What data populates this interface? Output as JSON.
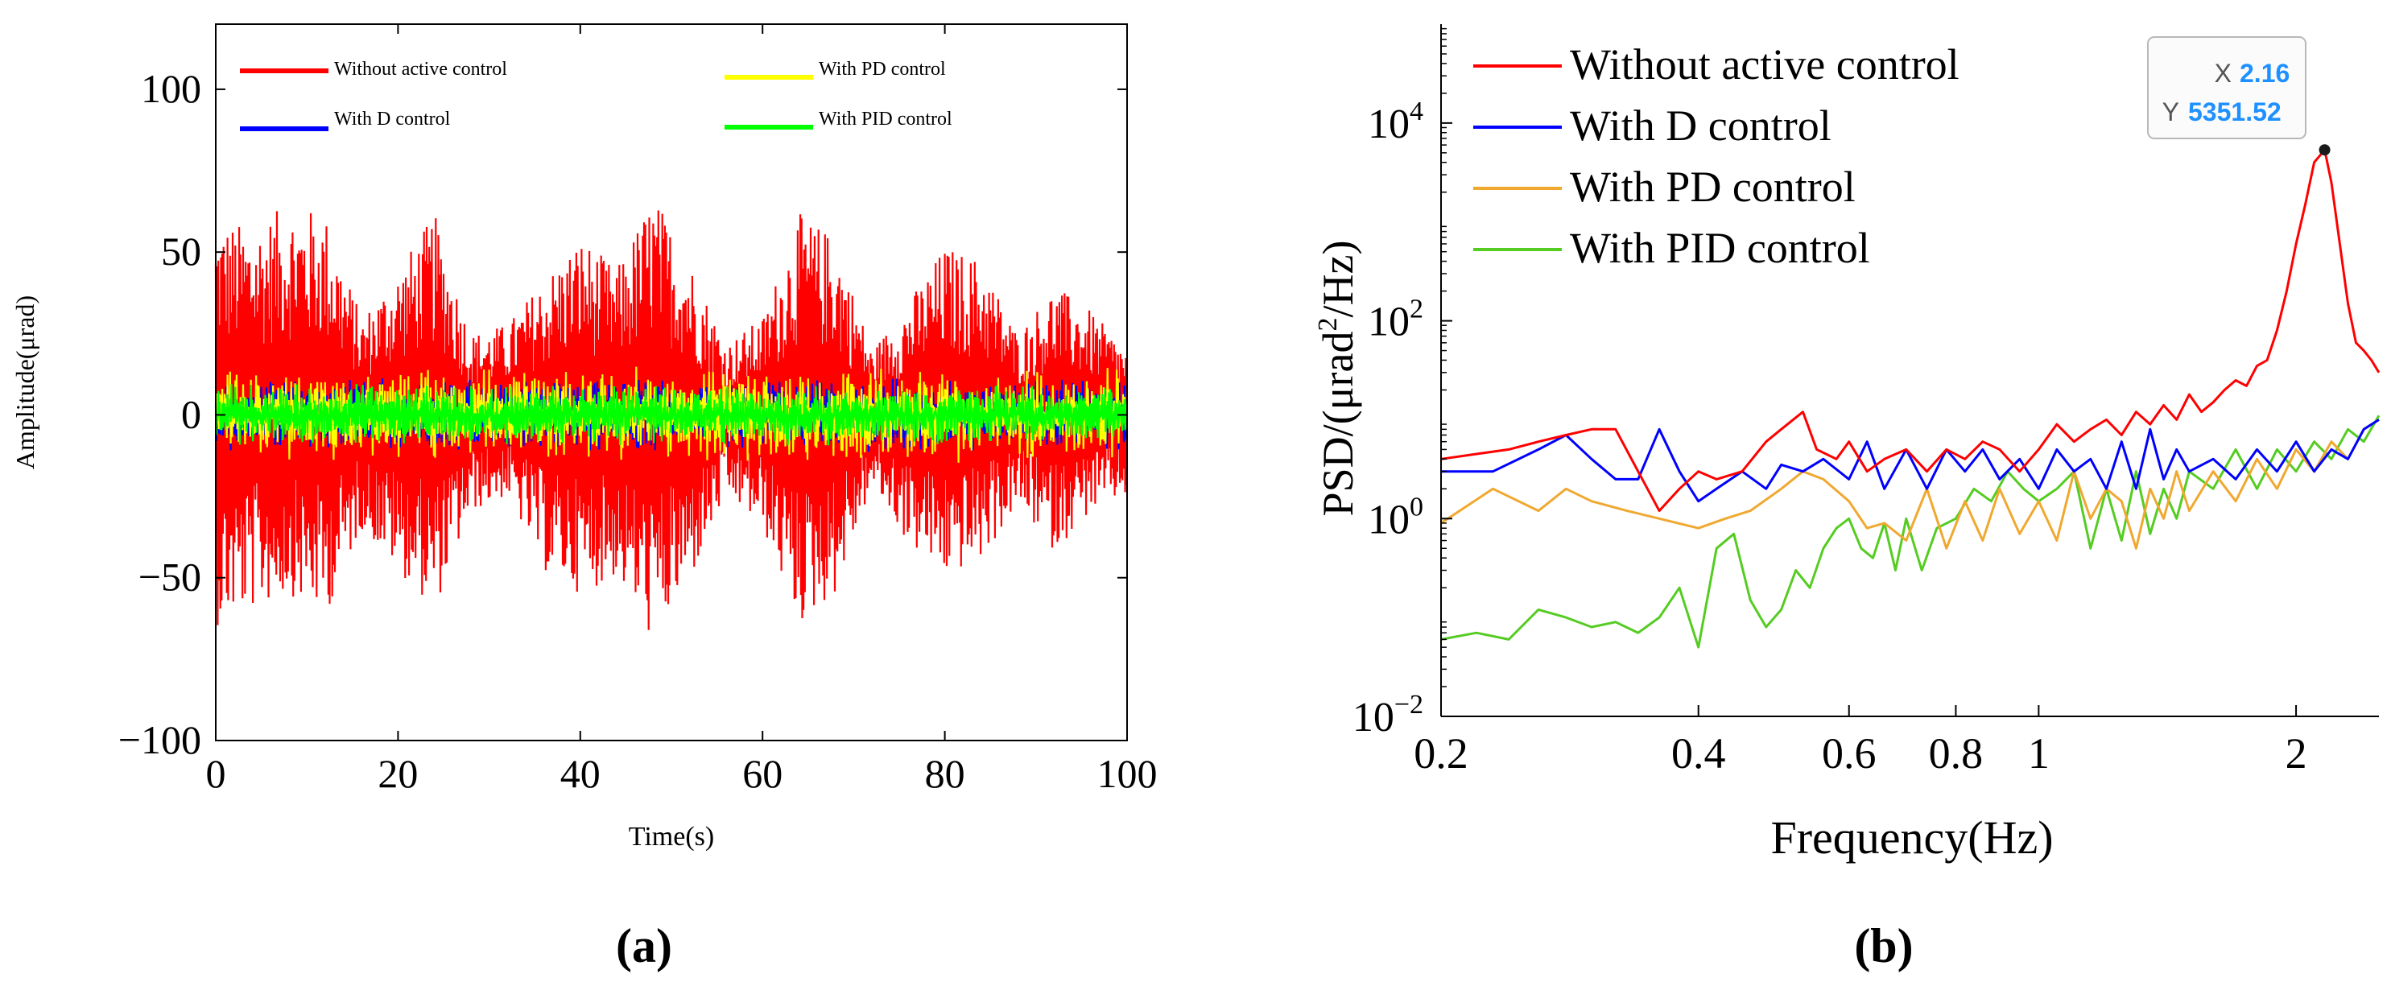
{
  "chart_data": [
    {
      "id": "a",
      "panel_label": "(a)",
      "type": "line",
      "title": "",
      "xlabel": "Time(s)",
      "ylabel": "Amplitude(μrad)",
      "xlim": [
        0,
        100
      ],
      "ylim": [
        -100,
        120
      ],
      "xticks": [
        0,
        20,
        40,
        60,
        80,
        100
      ],
      "xtick_labels": [
        "0",
        "20",
        "40",
        "60",
        "80",
        "100"
      ],
      "yticks": [
        -100,
        -50,
        0,
        50,
        100
      ],
      "ytick_labels": [
        "−100",
        "−50",
        "0",
        "50",
        "100"
      ],
      "legend_position": "top",
      "series": [
        {
          "name": "Without active control",
          "color": "#ff0000",
          "envelope_t": [
            0,
            4,
            8,
            12,
            16,
            20,
            24,
            28,
            32,
            36,
            40,
            44,
            48,
            52,
            56,
            60,
            64,
            68,
            72,
            76,
            80,
            84,
            88,
            92,
            96,
            100
          ],
          "envelope_max": [
            60,
            58,
            65,
            62,
            30,
            45,
            62,
            25,
            28,
            42,
            55,
            45,
            68,
            48,
            22,
            30,
            62,
            55,
            20,
            35,
            52,
            48,
            25,
            40,
            32,
            20
          ],
          "envelope_min": [
            -65,
            -60,
            -55,
            -62,
            -35,
            -48,
            -60,
            -30,
            -25,
            -48,
            -55,
            -50,
            -70,
            -52,
            -25,
            -35,
            -65,
            -55,
            -22,
            -40,
            -50,
            -45,
            -28,
            -42,
            -30,
            -25
          ]
        },
        {
          "name": "With D control",
          "color": "#0000ff",
          "amplitude": 12
        },
        {
          "name": "With PD control",
          "color": "#ffff00",
          "amplitude": 15
        },
        {
          "name": "With PID control",
          "color": "#00ff00",
          "amplitude": 10
        }
      ]
    },
    {
      "id": "b",
      "panel_label": "(b)",
      "type": "line",
      "title": "",
      "xlabel": "Frequency(Hz)",
      "ylabel": "PSD/(μrad",
      "ylabel_sup": "2",
      "ylabel_tail": "/Hz)",
      "xscale": "log",
      "yscale": "log",
      "xlim": [
        0.2,
        2.5
      ],
      "ylim": [
        0.01,
        100000
      ],
      "xticks": [
        0.2,
        0.4,
        0.6,
        0.8,
        1,
        2
      ],
      "xtick_labels": [
        "0.2",
        "0.4",
        "0.6",
        "0.8",
        "1",
        "2"
      ],
      "yticks": [
        0.01,
        1,
        100,
        10000
      ],
      "ytick_base": [
        "10",
        "10",
        "10",
        "10"
      ],
      "ytick_exp": [
        "−2",
        "0",
        "2",
        "4"
      ],
      "legend_position": "top-left",
      "datatip": {
        "x_label": "X",
        "x_value": "2.16",
        "y_label": "Y",
        "y_value": "5351.52"
      },
      "series": [
        {
          "name": "Without active control",
          "color": "#ff0000",
          "x": [
            0.2,
            0.22,
            0.24,
            0.26,
            0.28,
            0.3,
            0.32,
            0.34,
            0.36,
            0.38,
            0.4,
            0.42,
            0.45,
            0.48,
            0.5,
            0.53,
            0.55,
            0.58,
            0.6,
            0.63,
            0.66,
            0.7,
            0.74,
            0.78,
            0.82,
            0.86,
            0.9,
            0.95,
            1.0,
            1.05,
            1.1,
            1.15,
            1.2,
            1.25,
            1.3,
            1.35,
            1.4,
            1.45,
            1.5,
            1.55,
            1.6,
            1.65,
            1.7,
            1.75,
            1.8,
            1.85,
            1.9,
            1.95,
            2.0,
            2.05,
            2.1,
            2.16,
            2.2,
            2.25,
            2.3,
            2.35,
            2.4,
            2.45,
            2.5
          ],
          "y": [
            4,
            4.5,
            5,
            6,
            7,
            8,
            8,
            3,
            1.2,
            2,
            3,
            2.5,
            3,
            6,
            8,
            12,
            5,
            4,
            6,
            3,
            4,
            5,
            3,
            5,
            4,
            6,
            5,
            3,
            5,
            9,
            6,
            8,
            10,
            7,
            12,
            9,
            14,
            10,
            18,
            12,
            15,
            20,
            25,
            22,
            35,
            40,
            80,
            200,
            600,
            1500,
            4000,
            5351.52,
            2500,
            600,
            150,
            60,
            50,
            40,
            30
          ]
        },
        {
          "name": "With D control",
          "color": "#0000ff",
          "x": [
            0.2,
            0.23,
            0.26,
            0.28,
            0.3,
            0.32,
            0.34,
            0.36,
            0.38,
            0.4,
            0.42,
            0.45,
            0.48,
            0.5,
            0.53,
            0.56,
            0.6,
            0.63,
            0.66,
            0.7,
            0.74,
            0.78,
            0.82,
            0.86,
            0.9,
            0.95,
            1.0,
            1.05,
            1.1,
            1.15,
            1.2,
            1.25,
            1.3,
            1.35,
            1.4,
            1.45,
            1.5,
            1.6,
            1.7,
            1.8,
            1.9,
            2.0,
            2.1,
            2.2,
            2.3,
            2.4,
            2.5
          ],
          "y": [
            3,
            3,
            5,
            7,
            4,
            2.5,
            2.5,
            8,
            3,
            1.5,
            2,
            3,
            2,
            3.5,
            3,
            4,
            2.5,
            6,
            2,
            5,
            2,
            5,
            3,
            5,
            2.5,
            4,
            2,
            5,
            3,
            4,
            2,
            6,
            2,
            8,
            2.5,
            5,
            3,
            4,
            2.5,
            5,
            3,
            6,
            3,
            5,
            4,
            8,
            10
          ]
        },
        {
          "name": "With PD control",
          "color": "#f0a830",
          "x": [
            0.2,
            0.23,
            0.26,
            0.28,
            0.3,
            0.33,
            0.36,
            0.4,
            0.43,
            0.46,
            0.5,
            0.53,
            0.56,
            0.6,
            0.63,
            0.66,
            0.7,
            0.74,
            0.78,
            0.82,
            0.86,
            0.9,
            0.95,
            1.0,
            1.05,
            1.1,
            1.15,
            1.2,
            1.25,
            1.3,
            1.35,
            1.4,
            1.45,
            1.5,
            1.6,
            1.7,
            1.8,
            1.9,
            2.0,
            2.1,
            2.2,
            2.3,
            2.4,
            2.5
          ],
          "y": [
            0.9,
            2,
            1.2,
            2,
            1.5,
            1.2,
            1.0,
            0.8,
            1.0,
            1.2,
            2,
            3,
            2.5,
            1.5,
            0.8,
            0.9,
            0.6,
            2,
            0.5,
            1.5,
            0.6,
            2,
            0.7,
            1.5,
            0.6,
            3,
            1.0,
            2,
            1.5,
            0.5,
            2,
            1.0,
            3,
            1.2,
            3,
            1.5,
            4,
            2,
            5,
            3,
            6,
            4,
            8,
            10
          ]
        },
        {
          "name": "With PID control",
          "color": "#55cc22",
          "x": [
            0.2,
            0.22,
            0.24,
            0.26,
            0.28,
            0.3,
            0.32,
            0.34,
            0.36,
            0.38,
            0.4,
            0.42,
            0.44,
            0.46,
            0.48,
            0.5,
            0.52,
            0.54,
            0.56,
            0.58,
            0.6,
            0.62,
            0.64,
            0.66,
            0.68,
            0.7,
            0.73,
            0.76,
            0.8,
            0.84,
            0.88,
            0.92,
            0.96,
            1.0,
            1.05,
            1.1,
            1.15,
            1.2,
            1.25,
            1.3,
            1.35,
            1.4,
            1.45,
            1.5,
            1.6,
            1.7,
            1.8,
            1.9,
            2.0,
            2.1,
            2.2,
            2.3,
            2.4,
            2.5
          ],
          "y": [
            0.06,
            0.07,
            0.06,
            0.12,
            0.1,
            0.08,
            0.09,
            0.07,
            0.1,
            0.2,
            0.05,
            0.5,
            0.7,
            0.15,
            0.08,
            0.12,
            0.3,
            0.2,
            0.5,
            0.8,
            1.0,
            0.5,
            0.4,
            0.9,
            0.3,
            1.0,
            0.3,
            0.8,
            1.0,
            2,
            1.5,
            3,
            2,
            1.5,
            2,
            3,
            0.5,
            2,
            0.6,
            3,
            0.7,
            2,
            1.0,
            3,
            2,
            5,
            2,
            5,
            3,
            6,
            4,
            8,
            6,
            11
          ]
        }
      ]
    }
  ]
}
